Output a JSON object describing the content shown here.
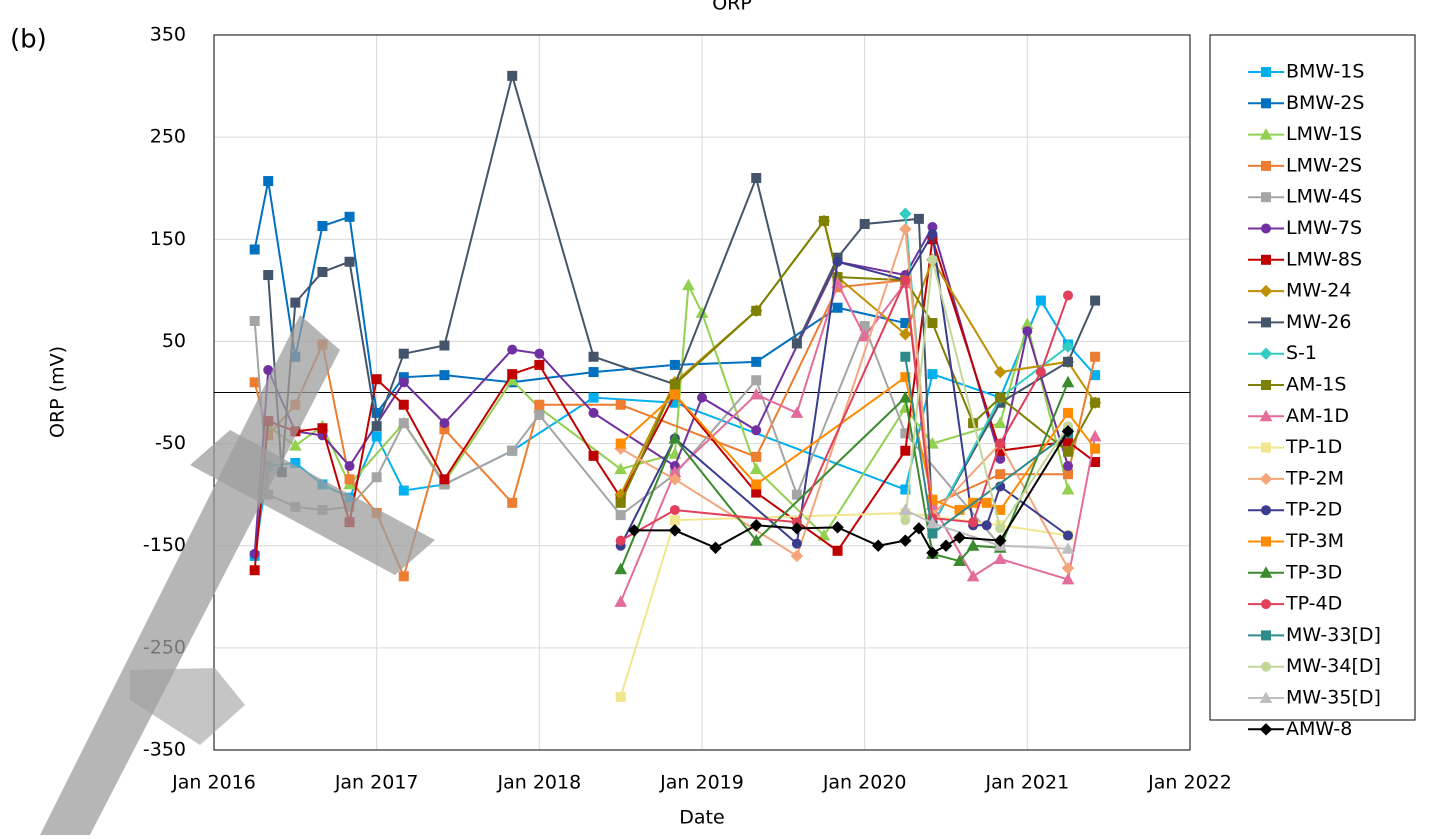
{
  "panel_label": "(b)",
  "chart_data": {
    "type": "line",
    "title": "ORP",
    "x_label": "Date",
    "y_label": "ORP (mV)",
    "xlim": [
      "2016-01",
      "2022-01"
    ],
    "xticks": [
      {
        "value": "2016-01",
        "label": "Jan 2016"
      },
      {
        "value": "2017-01",
        "label": "Jan 2017"
      },
      {
        "value": "2018-01",
        "label": "Jan 2018"
      },
      {
        "value": "2019-01",
        "label": "Jan 2019"
      },
      {
        "value": "2020-01",
        "label": "Jan 2020"
      },
      {
        "value": "2021-01",
        "label": "Jan 2021"
      },
      {
        "value": "2022-01",
        "label": "Jan 2022"
      }
    ],
    "ylim": [
      -350,
      350
    ],
    "yticks": [
      350,
      250,
      150,
      50,
      -50,
      -150,
      -250,
      -350
    ],
    "grid": true,
    "legend": "right",
    "series": [
      {
        "name": "BMW-1S",
        "color": "#00b0f0",
        "marker": "square",
        "x": [
          "2016-04",
          "2016-05",
          "2016-07",
          "2016-09",
          "2016-11",
          "2017-01",
          "2017-03",
          "2017-06",
          "2017-11",
          "2018-05",
          "2018-11",
          "2020-04",
          "2020-06",
          "2020-11",
          "2021-02",
          "2021-04",
          "2021-06"
        ],
        "values": [
          -160,
          -72,
          -69,
          -90,
          -103,
          -43,
          -96,
          -90,
          -57,
          -5,
          -10,
          -95,
          18,
          -5,
          90,
          47,
          17
        ]
      },
      {
        "name": "BMW-2S",
        "color": "#0070c0",
        "marker": "square",
        "x": [
          "2016-04",
          "2016-05",
          "2016-07",
          "2016-09",
          "2016-11",
          "2017-01",
          "2017-03",
          "2017-06",
          "2017-11",
          "2018-05",
          "2018-11",
          "2019-05",
          "2019-11",
          "2020-04"
        ],
        "values": [
          140,
          207,
          35,
          163,
          172,
          -20,
          15,
          17,
          10,
          20,
          27,
          30,
          83,
          68
        ]
      },
      {
        "name": "LMW-1S",
        "color": "#92d050",
        "marker": "triangle",
        "x": [
          "2016-05",
          "2016-07",
          "2016-09",
          "2016-11",
          "2017-03",
          "2017-06",
          "2017-11",
          "2018-01",
          "2018-07",
          "2018-11",
          "2018-12",
          "2019-01",
          "2019-05",
          "2019-10",
          "2020-04",
          "2020-06",
          "2020-11",
          "2021-01",
          "2021-04"
        ],
        "values": [
          -33,
          -52,
          -33,
          -90,
          -30,
          -88,
          12,
          -15,
          -75,
          -60,
          105,
          78,
          -75,
          -140,
          -15,
          -50,
          -30,
          67,
          -95
        ]
      },
      {
        "name": "LMW-2S",
        "color": "#ed7d31",
        "marker": "square",
        "x": [
          "2016-04",
          "2016-05",
          "2016-07",
          "2016-09",
          "2016-11",
          "2017-01",
          "2017-03",
          "2017-06",
          "2017-11",
          "2018-01",
          "2018-07",
          "2019-05",
          "2019-11",
          "2020-04",
          "2020-06",
          "2020-11",
          "2021-04",
          "2021-06"
        ],
        "values": [
          10,
          -42,
          -12,
          47,
          -85,
          -118,
          -180,
          -36,
          -108,
          -12,
          -12,
          -63,
          103,
          110,
          -110,
          -80,
          -80,
          35
        ]
      },
      {
        "name": "LMW-4S",
        "color": "#a5a5a5",
        "marker": "square",
        "x": [
          "2016-04",
          "2016-05",
          "2016-07",
          "2016-09",
          "2016-11",
          "2017-01",
          "2017-03",
          "2017-06",
          "2017-11",
          "2018-01",
          "2018-07",
          "2018-11",
          "2019-05",
          "2019-08",
          "2020-01",
          "2020-04",
          "2020-11"
        ],
        "values": [
          70,
          -100,
          -112,
          -115,
          -112,
          -83,
          -30,
          -90,
          -57,
          -22,
          -120,
          -80,
          12,
          -100,
          65,
          -40,
          -150
        ]
      },
      {
        "name": "LMW-7S",
        "color": "#7030a0",
        "marker": "circle",
        "x": [
          "2016-04",
          "2016-05",
          "2016-07",
          "2016-09",
          "2016-11",
          "2017-03",
          "2017-06",
          "2017-11",
          "2018-01",
          "2018-05",
          "2018-11",
          "2019-01",
          "2019-05",
          "2019-11",
          "2020-04",
          "2020-06",
          "2020-11",
          "2021-01",
          "2021-04"
        ],
        "values": [
          -158,
          22,
          -38,
          -42,
          -72,
          10,
          -30,
          42,
          38,
          -20,
          -72,
          -5,
          -37,
          128,
          115,
          162,
          -65,
          60,
          -72
        ]
      },
      {
        "name": "LMW-8S",
        "color": "#c00000",
        "marker": "square",
        "x": [
          "2016-04",
          "2016-05",
          "2016-07",
          "2016-09",
          "2016-11",
          "2017-01",
          "2017-03",
          "2017-06",
          "2017-11",
          "2018-01",
          "2018-05",
          "2018-07",
          "2018-11",
          "2019-05",
          "2019-11",
          "2020-04",
          "2020-06",
          "2020-11",
          "2021-04",
          "2021-06"
        ],
        "values": [
          -174,
          -28,
          -38,
          -35,
          -127,
          13,
          -12,
          -85,
          18,
          27,
          -62,
          -103,
          -2,
          -98,
          -155,
          -57,
          150,
          -57,
          -48,
          -68
        ]
      },
      {
        "name": "MW-24",
        "color": "#bf9000",
        "marker": "diamond",
        "x": [
          "2018-07",
          "2018-11",
          "2019-05",
          "2019-10",
          "2019-11",
          "2020-04",
          "2020-06",
          "2020-11",
          "2021-04",
          "2021-06"
        ],
        "values": [
          -100,
          10,
          80,
          168,
          113,
          57,
          130,
          20,
          30,
          -10
        ]
      },
      {
        "name": "MW-26",
        "color": "#44546a",
        "marker": "square",
        "x": [
          "2016-05",
          "2016-06",
          "2016-07",
          "2016-09",
          "2016-11",
          "2017-01",
          "2017-03",
          "2017-06",
          "2017-11",
          "2018-05",
          "2018-11",
          "2019-05",
          "2019-08",
          "2019-11",
          "2020-01",
          "2020-05",
          "2020-06",
          "2020-11",
          "2021-04",
          "2021-06"
        ],
        "values": [
          115,
          -78,
          88,
          118,
          128,
          -33,
          38,
          46,
          310,
          35,
          8,
          210,
          48,
          132,
          165,
          170,
          -130,
          -10,
          30,
          90
        ]
      },
      {
        "name": "S-1",
        "color": "#33ccc4",
        "marker": "diamond",
        "x": [
          "2020-04",
          "2020-06",
          "2020-11",
          "2021-04"
        ],
        "values": [
          175,
          -130,
          -5,
          45
        ]
      },
      {
        "name": "AM-1S",
        "color": "#7f7f00",
        "marker": "square",
        "x": [
          "2018-07",
          "2018-11",
          "2019-05",
          "2019-10",
          "2019-11",
          "2020-04",
          "2020-06",
          "2020-09",
          "2020-11",
          "2021-04",
          "2021-06"
        ],
        "values": [
          -108,
          8,
          80,
          168,
          113,
          110,
          68,
          -30,
          -5,
          -58,
          -10
        ]
      },
      {
        "name": "AM-1D",
        "color": "#e46c9b",
        "marker": "triangle",
        "x": [
          "2018-07",
          "2018-11",
          "2019-05",
          "2019-08",
          "2019-11",
          "2020-01",
          "2020-04",
          "2020-06",
          "2020-09",
          "2020-11",
          "2021-04",
          "2021-06"
        ],
        "values": [
          -205,
          -78,
          -2,
          -20,
          107,
          55,
          107,
          -110,
          -180,
          -163,
          -183,
          -43
        ]
      },
      {
        "name": "TP-1D",
        "color": "#f2e68c",
        "marker": "square",
        "x": [
          "2018-07",
          "2018-11",
          "2020-04",
          "2020-11",
          "2021-04"
        ],
        "values": [
          -298,
          -125,
          -118,
          -130,
          -140
        ]
      },
      {
        "name": "TP-2M",
        "color": "#f4a57a",
        "marker": "diamond",
        "x": [
          "2018-07",
          "2018-11",
          "2019-08",
          "2020-04",
          "2020-06",
          "2020-11",
          "2021-04"
        ],
        "values": [
          -55,
          -85,
          -160,
          160,
          -120,
          -50,
          -172
        ]
      },
      {
        "name": "TP-2D",
        "color": "#3a3d8f",
        "marker": "circle",
        "x": [
          "2018-07",
          "2018-11",
          "2019-08",
          "2019-11",
          "2020-04",
          "2020-06",
          "2020-09",
          "2020-10",
          "2020-11",
          "2021-04"
        ],
        "values": [
          -150,
          -45,
          -148,
          128,
          110,
          155,
          -130,
          -130,
          -92,
          -140
        ]
      },
      {
        "name": "TP-3M",
        "color": "#ff8c00",
        "marker": "square",
        "x": [
          "2018-07",
          "2018-11",
          "2019-05",
          "2020-04",
          "2020-06",
          "2020-08",
          "2020-09",
          "2020-10",
          "2020-11",
          "2021-04",
          "2021-06"
        ],
        "values": [
          -50,
          -2,
          -90,
          15,
          -105,
          -115,
          -108,
          -108,
          -115,
          -20,
          -55
        ]
      },
      {
        "name": "TP-3D",
        "color": "#3c8a2e",
        "marker": "triangle",
        "x": [
          "2018-07",
          "2018-11",
          "2019-05",
          "2020-04",
          "2020-06",
          "2020-08",
          "2020-09",
          "2020-11",
          "2021-04"
        ],
        "values": [
          -173,
          -45,
          -145,
          -5,
          -158,
          -165,
          -150,
          -152,
          10
        ]
      },
      {
        "name": "TP-4D",
        "color": "#e0405a",
        "marker": "circle",
        "x": [
          "2018-07",
          "2018-11",
          "2019-08",
          "2020-04",
          "2020-06",
          "2020-09",
          "2020-11",
          "2021-02",
          "2021-04"
        ],
        "values": [
          -145,
          -115,
          -127,
          110,
          -123,
          -127,
          -50,
          20,
          95
        ]
      },
      {
        "name": "MW-33[D]",
        "color": "#2e8b8b",
        "marker": "square",
        "x": [
          "2020-04",
          "2020-06",
          "2021-04"
        ],
        "values": [
          35,
          -138,
          -40
        ]
      },
      {
        "name": "MW-34[D]",
        "color": "#c4d79b",
        "marker": "circle",
        "x": [
          "2020-04",
          "2020-06",
          "2020-11",
          "2021-04"
        ],
        "values": [
          -125,
          130,
          -133,
          -33
        ]
      },
      {
        "name": "MW-35[D]",
        "color": "#bfbfbf",
        "marker": "triangle",
        "x": [
          "2020-04",
          "2020-06",
          "2020-11",
          "2021-04"
        ],
        "values": [
          -115,
          -128,
          -150,
          -153
        ]
      },
      {
        "name": "AMW-8",
        "color": "#000000",
        "marker": "diamond",
        "x": [
          "2018-08",
          "2018-11",
          "2019-02",
          "2019-05",
          "2019-08",
          "2019-11",
          "2020-02",
          "2020-04",
          "2020-05",
          "2020-06",
          "2020-07",
          "2020-08",
          "2020-11",
          "2021-04"
        ],
        "values": [
          -135,
          -135,
          -152,
          -130,
          -133,
          -132,
          -150,
          -145,
          -133,
          -157,
          -150,
          -142,
          -145,
          -38
        ]
      }
    ]
  }
}
